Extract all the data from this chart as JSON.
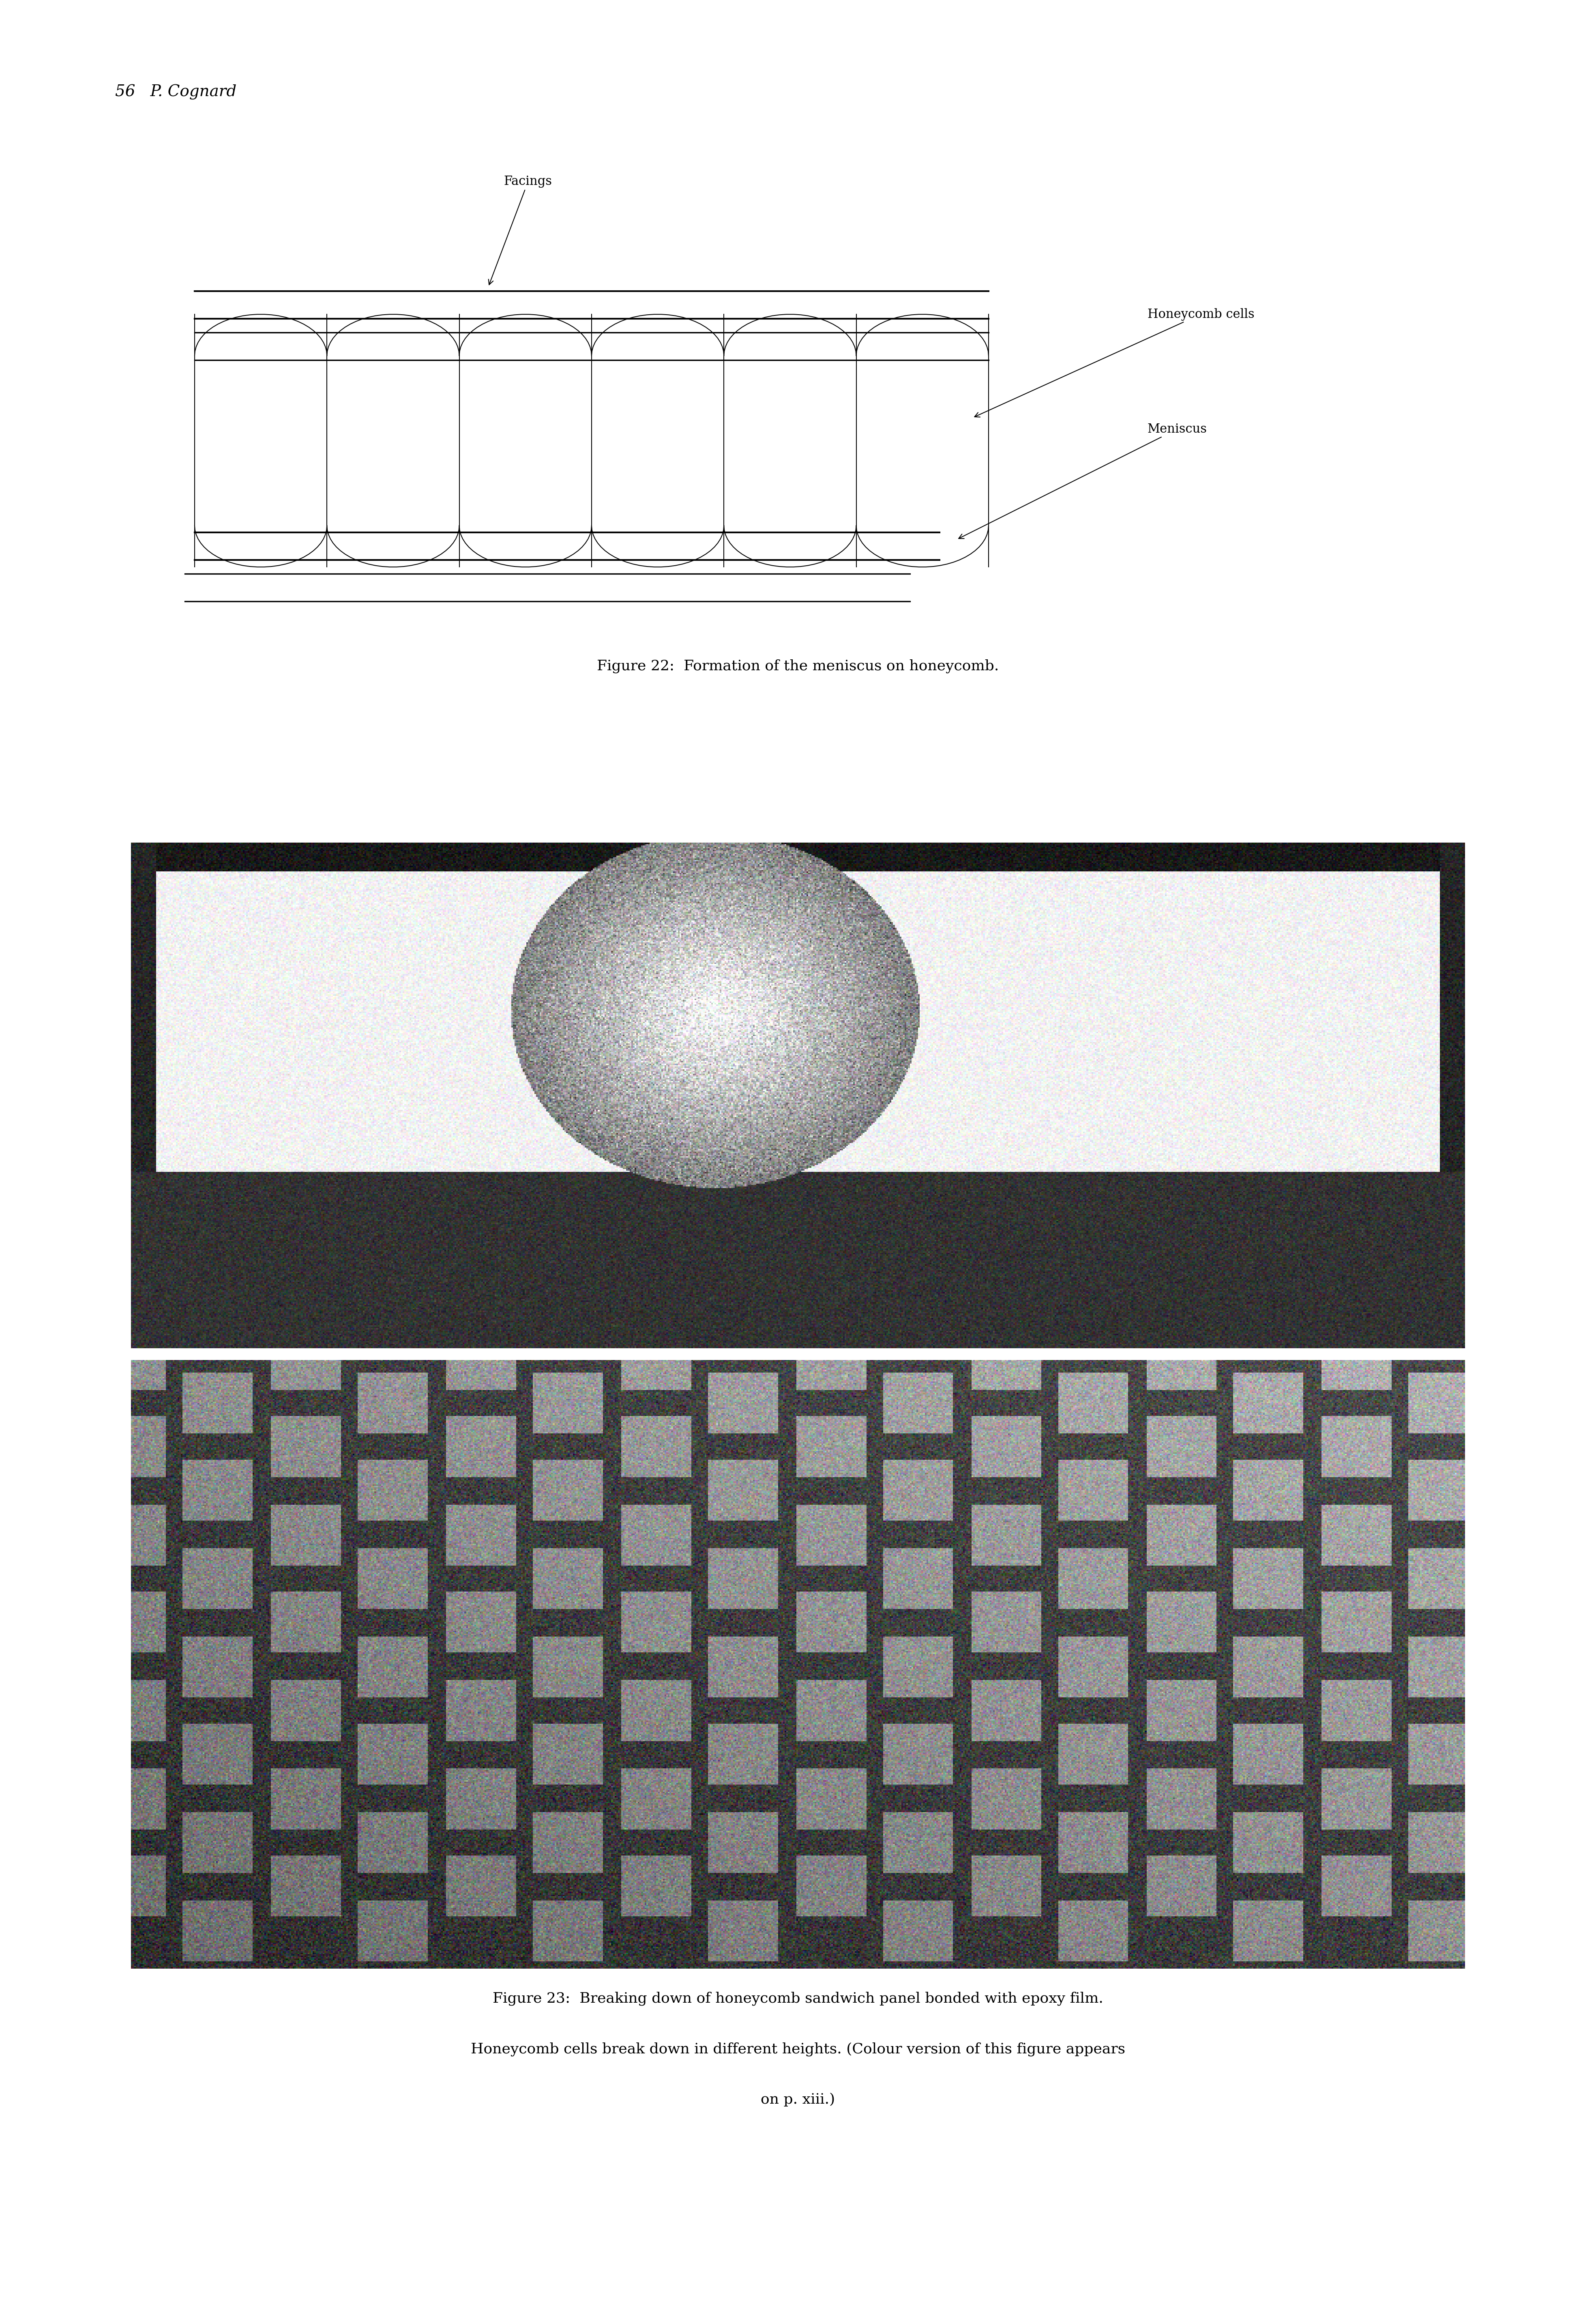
{
  "page_width": 39.16,
  "page_height": 56.67,
  "background_color": "#ffffff",
  "header_text": "56   P. Cognard",
  "header_italic": true,
  "fig22_caption": "Figure 22:  Formation of the meniscus on honeycomb.",
  "fig23_caption_line1": "Figure 23:  Breaking down of honeycomb sandwich panel bonded with epoxy film.",
  "fig23_caption_line2": "Honeycomb cells break down in different heights. (Colour version of this figure appears",
  "fig23_caption_line3": "on p. xiii.)",
  "diagram_label_facings": "Facings",
  "diagram_label_honeycomb": "Honeycomb cells",
  "diagram_label_meniscus": "Meniscus",
  "text_color": "#000000",
  "font_size_header": 28,
  "font_size_caption": 26,
  "font_size_labels": 24
}
